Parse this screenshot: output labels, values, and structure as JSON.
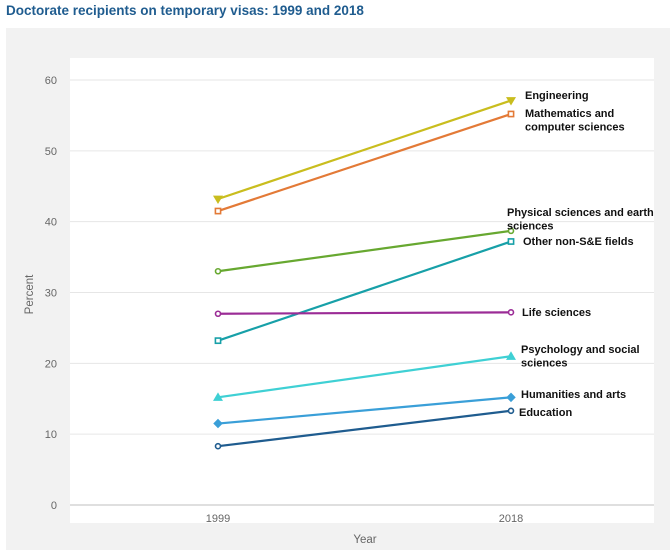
{
  "chart_data": {
    "type": "line",
    "title": "Doctorate recipients on temporary visas: 1999 and 2018",
    "xlabel": "Year",
    "ylabel": "Percent",
    "categories": [
      "1999",
      "2018"
    ],
    "ylim": [
      0,
      60
    ],
    "yticks": [
      0,
      10,
      20,
      30,
      40,
      50,
      60
    ],
    "grid": true,
    "series": [
      {
        "name": "Engineering",
        "label_lines": [
          "Engineering"
        ],
        "values": [
          43.2,
          57.1
        ],
        "color": "#c9bd1e",
        "marker": "triangle-down"
      },
      {
        "name": "Mathematics and computer sciences",
        "label_lines": [
          "Mathematics and",
          "computer sciences"
        ],
        "values": [
          41.5,
          55.2
        ],
        "color": "#e37a37",
        "marker": "square"
      },
      {
        "name": "Physical sciences and earth sciences",
        "label_lines": [
          "Physical sciences and earth",
          "sciences"
        ],
        "values": [
          33.0,
          38.7
        ],
        "color": "#67a830",
        "marker": "circle"
      },
      {
        "name": "Other non-S&E fields",
        "label_lines": [
          "Other non-S&E fields"
        ],
        "values": [
          23.2,
          37.2
        ],
        "color": "#17a0a8",
        "marker": "square"
      },
      {
        "name": "Life sciences",
        "label_lines": [
          "Life sciences"
        ],
        "values": [
          27.0,
          27.2
        ],
        "color": "#9b2c96",
        "marker": "circle"
      },
      {
        "name": "Psychology and social sciences",
        "label_lines": [
          "Psychology and social",
          "sciences"
        ],
        "values": [
          15.2,
          21.0
        ],
        "color": "#3fd0d4",
        "marker": "triangle-up"
      },
      {
        "name": "Humanities and arts",
        "label_lines": [
          "Humanities and arts"
        ],
        "values": [
          11.5,
          15.2
        ],
        "color": "#3a9fd8",
        "marker": "diamond"
      },
      {
        "name": "Education",
        "label_lines": [
          "Education"
        ],
        "values": [
          8.3,
          13.3
        ],
        "color": "#1f5c8f",
        "marker": "circle"
      }
    ]
  }
}
